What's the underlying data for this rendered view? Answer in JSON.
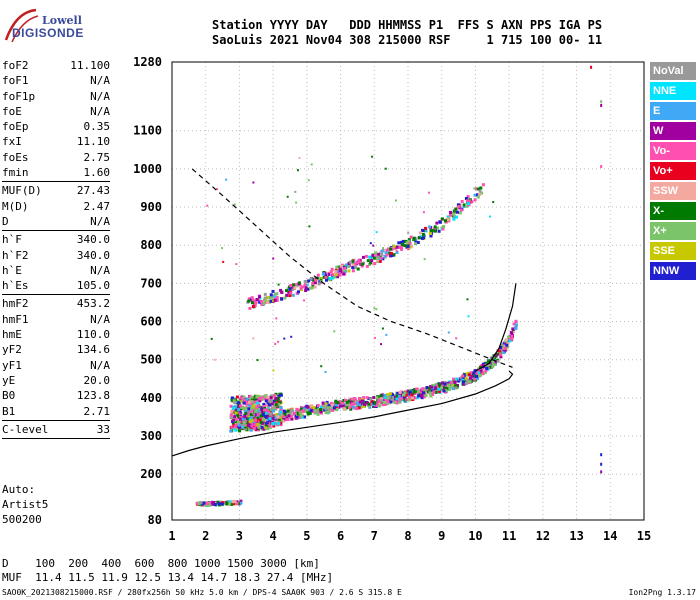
{
  "logo": {
    "line1": "Lowell",
    "line2": "DIGISONDE"
  },
  "header": {
    "line1": "Station YYYY DAY   DDD HHMMSS P1  FFS S AXN PPS IGA PS",
    "line2": "SaoLuis 2021 Nov04 308 215000 RSF     1 715 100 00- 11"
  },
  "params": [
    {
      "name": "foF2",
      "value": "11.100"
    },
    {
      "name": "foF1",
      "value": "N/A"
    },
    {
      "name": "foF1p",
      "value": "N/A"
    },
    {
      "name": "foE",
      "value": "N/A"
    },
    {
      "name": "foEp",
      "value": "0.35"
    },
    {
      "name": "fxI",
      "value": "11.10"
    },
    {
      "name": "foEs",
      "value": "2.75"
    },
    {
      "name": "fmin",
      "value": "1.60",
      "sep": true
    },
    {
      "name": "MUF(D)",
      "value": "27.43"
    },
    {
      "name": "M(D)",
      "value": "2.47"
    },
    {
      "name": "D",
      "value": "N/A",
      "sep": true
    },
    {
      "name": "h`F",
      "value": "340.0"
    },
    {
      "name": "h`F2",
      "value": "340.0"
    },
    {
      "name": "h`E",
      "value": "N/A"
    },
    {
      "name": "h`Es",
      "value": "105.0",
      "sep": true
    },
    {
      "name": "hmF2",
      "value": "453.2"
    },
    {
      "name": "hmF1",
      "value": "N/A"
    },
    {
      "name": "hmE",
      "value": "110.0"
    },
    {
      "name": "yF2",
      "value": "134.6"
    },
    {
      "name": "yF1",
      "value": "N/A"
    },
    {
      "name": "yE",
      "value": "20.0"
    },
    {
      "name": "B0",
      "value": "123.8"
    },
    {
      "name": "B1",
      "value": "2.71",
      "sep": true
    },
    {
      "name": "C-level",
      "value": "33",
      "sep": true
    }
  ],
  "auto": {
    "line1": "Auto:",
    "line2": "Artist5",
    "line3": "500200"
  },
  "muf_table": {
    "d_line": "D    100  200  400  600  800 1000 1500 3000 [km]",
    "muf_line": "MUF  11.4 11.5 11.9 12.5 13.4 14.7 18.3 27.4 [MHz]"
  },
  "footer": {
    "left": "SAO0K_2021308215000.RSF / 280fx256h 50 kHz 5.0 km / DPS-4 SAA0K 903 / 2.6 S 315.8 E",
    "right": "Ion2Png 1.3.17"
  },
  "legend": [
    {
      "label": "NoVal",
      "color": "#999999"
    },
    {
      "label": "NNE",
      "color": "#00e5ff"
    },
    {
      "label": "E",
      "color": "#3fa9f5"
    },
    {
      "label": "W",
      "color": "#a000a0"
    },
    {
      "label": "Vo-",
      "color": "#ff4fb0"
    },
    {
      "label": "Vo+",
      "color": "#e8001e"
    },
    {
      "label": "SSW",
      "color": "#f4a9a0"
    },
    {
      "label": "X-",
      "color": "#007a00"
    },
    {
      "label": "X+",
      "color": "#7cc46a"
    },
    {
      "label": "SSE",
      "color": "#c8c800"
    },
    {
      "label": "NNW",
      "color": "#2020d0"
    }
  ],
  "chart_data": {
    "type": "scatter",
    "x_ticks": [
      1,
      2,
      3,
      4,
      5,
      6,
      7,
      8,
      9,
      10,
      11,
      12,
      13,
      14,
      15
    ],
    "y_ticks": [
      80,
      200,
      300,
      400,
      500,
      600,
      700,
      800,
      900,
      1000,
      1100,
      1280
    ],
    "xlim": [
      1,
      15
    ],
    "ylim": [
      80,
      1280
    ],
    "grid": true,
    "series": [
      {
        "color": "#000000",
        "style": "solid",
        "points": [
          [
            1.0,
            248
          ],
          [
            1.5,
            262
          ],
          [
            2,
            274
          ],
          [
            3,
            293
          ],
          [
            4,
            310
          ],
          [
            5,
            323
          ],
          [
            6,
            336
          ],
          [
            7,
            350
          ],
          [
            8,
            368
          ],
          [
            9,
            385
          ],
          [
            10,
            410
          ],
          [
            10.6,
            432
          ],
          [
            11.0,
            450
          ],
          [
            11.1,
            462
          ],
          [
            11.0,
            470
          ]
        ]
      },
      {
        "color": "#000000",
        "style": "solid",
        "points": [
          [
            10.0,
            470
          ],
          [
            10.4,
            490
          ],
          [
            10.7,
            530
          ],
          [
            10.9,
            580
          ],
          [
            11.1,
            640
          ],
          [
            11.2,
            700
          ]
        ]
      },
      {
        "color": "#000000",
        "style": "dashed",
        "points": [
          [
            1.6,
            1000
          ],
          [
            2.5,
            930
          ],
          [
            3.5,
            850
          ],
          [
            4.5,
            770
          ],
          [
            5.5,
            700
          ],
          [
            6.5,
            640
          ],
          [
            7.5,
            600
          ],
          [
            8.5,
            570
          ],
          [
            9.5,
            535
          ],
          [
            10.5,
            500
          ],
          [
            11.1,
            480
          ]
        ]
      }
    ],
    "scatter_traces": [
      {
        "name": "F2-1",
        "x0": 3.0,
        "x1": 11.2,
        "curve": [
          [
            3.0,
            335
          ],
          [
            4,
            352
          ],
          [
            5,
            370
          ],
          [
            6,
            385
          ],
          [
            7,
            395
          ],
          [
            8,
            410
          ],
          [
            9,
            430
          ],
          [
            10,
            465
          ],
          [
            10.6,
            510
          ],
          [
            11.0,
            560
          ],
          [
            11.2,
            610
          ]
        ]
      },
      {
        "name": "F2-2",
        "x0": 3.2,
        "x1": 10.2,
        "curve": [
          [
            3.2,
            650
          ],
          [
            4,
            670
          ],
          [
            5,
            700
          ],
          [
            6,
            740
          ],
          [
            7,
            770
          ],
          [
            8,
            810
          ],
          [
            9,
            860
          ],
          [
            10,
            940
          ],
          [
            10.2,
            960
          ]
        ]
      },
      {
        "name": "E-low",
        "x0": 1.7,
        "x1": 3.0,
        "curve": [
          [
            1.7,
            125
          ],
          [
            2.3,
            127
          ],
          [
            3.0,
            130
          ]
        ]
      },
      {
        "name": "spread",
        "x0": 2.7,
        "x1": 4.2,
        "curve": [
          [
            2.7,
            360
          ],
          [
            3.5,
            365
          ],
          [
            4.2,
            370
          ]
        ]
      }
    ]
  }
}
